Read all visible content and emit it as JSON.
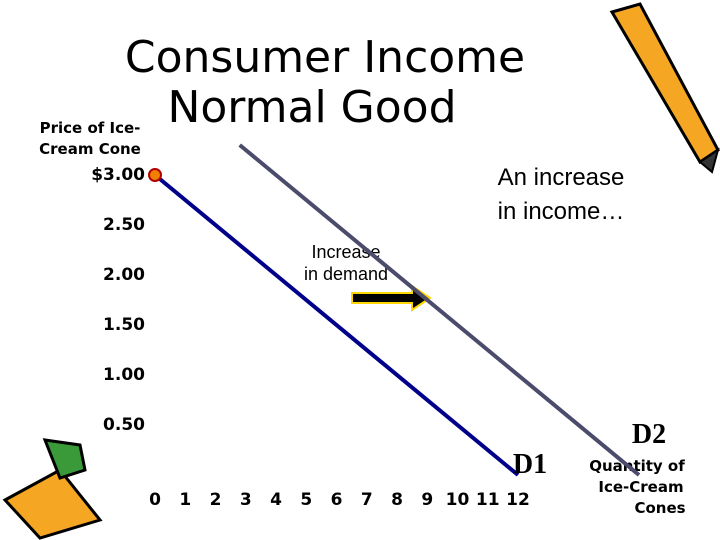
{
  "chart_data": {
    "type": "line",
    "title": [
      "Consumer Income",
      "Normal Good"
    ],
    "y_label": [
      "Price of Ice-",
      "Cream Cone"
    ],
    "x_label": [
      "Quantity of",
      "Ice-Cream",
      "Cones"
    ],
    "annotations": [
      [
        "An increase",
        "in income…"
      ],
      [
        "Increase",
        "in demand"
      ]
    ],
    "series": [
      {
        "name": "D1",
        "color": "#00008b",
        "x": [
          0,
          12
        ],
        "values": [
          3,
          0
        ]
      },
      {
        "name": "D2",
        "color": "#4b4b6b",
        "x": [
          2.8,
          16
        ],
        "values": [
          3.3,
          0
        ]
      }
    ],
    "xlim": [
      0,
      16
    ],
    "ylim": [
      0,
      3.3
    ],
    "xticks": [
      0,
      1,
      2,
      3,
      4,
      5,
      6,
      7,
      8,
      9,
      10,
      11,
      12
    ],
    "yticks": [
      {
        "value": 3,
        "label": "$3.00"
      },
      {
        "value": 2.5,
        "label": "2.50"
      },
      {
        "value": 2,
        "label": "2.00"
      },
      {
        "value": 1.5,
        "label": "1.50"
      },
      {
        "value": 1,
        "label": "1.00"
      },
      {
        "value": 0.5,
        "label": "0.50"
      }
    ],
    "grid": false
  }
}
